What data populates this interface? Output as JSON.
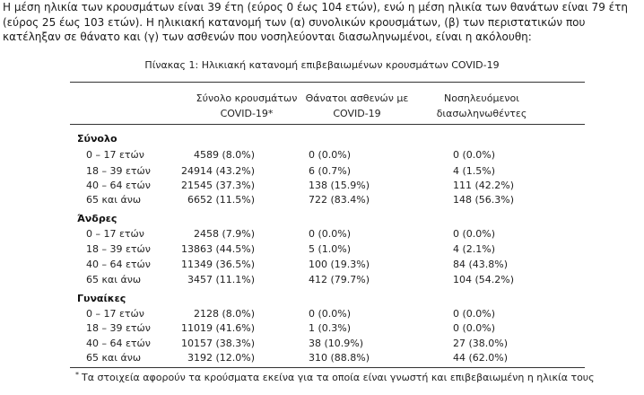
{
  "intro": "Η μέση ηλικία των κρουσμάτων είναι 39 έτη (εύρος 0 έως 104 ετών), ενώ η μέση ηλικία των θανάτων είναι 79 έτη (εύρος 25 έως 103 ετών). Η ηλικιακή κατανομή των (α) συνολικών κρουσμάτων, (β) των περιστατικών που κατέληξαν σε θάνατο και (γ) των ασθενών που νοσηλεύονται διασωληνωμένοι, είναι η ακόλουθη:",
  "caption": "Πίνακας 1: Ηλικιακή κατανομή επιβεβαιωμένων κρουσμάτων COVID-19",
  "columns": [
    {
      "line1": "Σύνολο κρουσμάτων",
      "line2": "COVID-19*"
    },
    {
      "line1": "Θάνατοι ασθενών με",
      "line2": "COVID-19"
    },
    {
      "line1": "Νοσηλευόμενοι",
      "line2": "διασωληνωθέντες"
    }
  ],
  "groups": [
    {
      "name": "Σύνολο",
      "rows": [
        {
          "age": "0 – 17 ετών",
          "cases": "4589 (8.0%)",
          "deaths": "0 (0.0%)",
          "icu": "0 (0.0%)"
        },
        {
          "age": "18 – 39 ετών",
          "cases": "24914 (43.2%)",
          "deaths": "6 (0.7%)",
          "icu": "4 (1.5%)"
        },
        {
          "age": "40 – 64 ετών",
          "cases": "21545 (37.3%)",
          "deaths": "138 (15.9%)",
          "icu": "111 (42.2%)"
        },
        {
          "age": "65 και άνω",
          "cases": "6652 (11.5%)",
          "deaths": "722 (83.4%)",
          "icu": "148 (56.3%)"
        }
      ]
    },
    {
      "name": "Άνδρες",
      "rows": [
        {
          "age": "0 – 17 ετών",
          "cases": "2458 (7.9%)",
          "deaths": "0 (0.0%)",
          "icu": "0 (0.0%)"
        },
        {
          "age": "18 – 39 ετών",
          "cases": "13863 (44.5%)",
          "deaths": "5 (1.0%)",
          "icu": "4 (2.1%)"
        },
        {
          "age": "40 – 64 ετών",
          "cases": "11349 (36.5%)",
          "deaths": "100 (19.3%)",
          "icu": "84 (43.8%)"
        },
        {
          "age": "65 και άνω",
          "cases": "3457 (11.1%)",
          "deaths": "412 (79.7%)",
          "icu": "104 (54.2%)"
        }
      ]
    },
    {
      "name": "Γυναίκες",
      "rows": [
        {
          "age": "0 – 17 ετών",
          "cases": "2128 (8.0%)",
          "deaths": "0 (0.0%)",
          "icu": "0 (0.0%)"
        },
        {
          "age": "18 – 39 ετών",
          "cases": "11019 (41.6%)",
          "deaths": "1 (0.3%)",
          "icu": "0 (0.0%)"
        },
        {
          "age": "40 – 64 ετών",
          "cases": "10157 (38.3%)",
          "deaths": "38 (10.9%)",
          "icu": "27 (38.0%)"
        },
        {
          "age": "65 και άνω",
          "cases": "3192 (12.0%)",
          "deaths": "310 (88.8%)",
          "icu": "44 (62.0%)"
        }
      ]
    }
  ],
  "footnote_mark": "*",
  "footnote": "Τα στοιχεία αφορούν τα κρούσματα εκείνα για τα οποία είναι γνωστή και επιβεβαιωμένη η ηλικία τους"
}
